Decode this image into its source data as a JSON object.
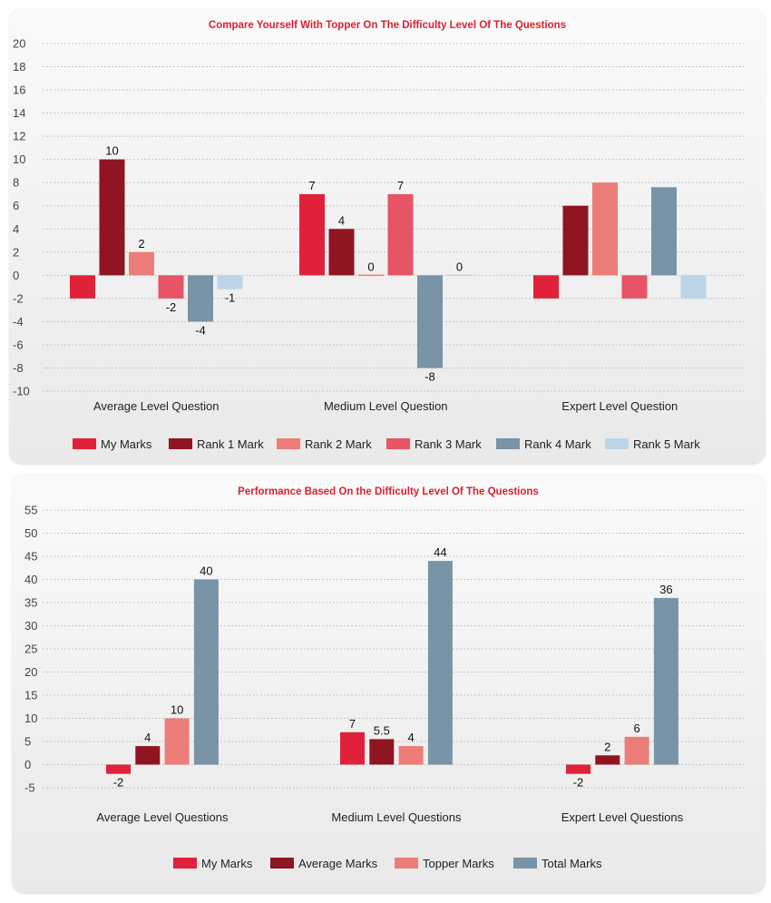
{
  "chart_data": [
    {
      "type": "bar",
      "title": "Compare Yourself With Topper On The Difficulty Level Of The Questions",
      "xlabel": "",
      "ylabel": "",
      "ylim": [
        -10,
        20
      ],
      "yticks": [
        20,
        18,
        16,
        14,
        12,
        10,
        8,
        6,
        4,
        2,
        0,
        -2,
        -4,
        -6,
        -8,
        -10
      ],
      "categories": [
        "Average Level Question",
        "Medium Level Question",
        "Expert Level Question"
      ],
      "series": [
        {
          "name": "My Marks",
          "color": "#e0213a",
          "values": [
            -2,
            7,
            -2
          ],
          "labels": [
            "",
            "7",
            ""
          ]
        },
        {
          "name": "Rank 1 Mark",
          "color": "#8f1522",
          "values": [
            10,
            4,
            6
          ],
          "labels": [
            "10",
            "4",
            ""
          ]
        },
        {
          "name": "Rank 2 Mark",
          "color": "#ec7d78",
          "values": [
            2,
            0,
            8
          ],
          "labels": [
            "2",
            "0",
            ""
          ]
        },
        {
          "name": "Rank 3 Mark",
          "color": "#e65466",
          "values": [
            -2,
            7,
            -2
          ],
          "labels": [
            "-2",
            "7",
            ""
          ]
        },
        {
          "name": "Rank 4 Mark",
          "color": "#7993a7",
          "values": [
            -4,
            -8,
            7.6
          ],
          "labels": [
            "-4",
            "-8",
            ""
          ]
        },
        {
          "name": "Rank 5 Mark",
          "color": "#bcd4e6",
          "values": [
            -1.2,
            0,
            -2
          ],
          "labels": [
            "-1",
            "0",
            ""
          ]
        }
      ],
      "grid": true,
      "legend": "bottom"
    },
    {
      "type": "bar",
      "title": "Performance Based On the Difficulty Level Of The Questions",
      "xlabel": "",
      "ylabel": "",
      "ylim": [
        -5,
        55
      ],
      "yticks": [
        55,
        50,
        45,
        40,
        35,
        30,
        25,
        20,
        15,
        10,
        5,
        0,
        -5
      ],
      "categories": [
        "Average Level Questions",
        "Medium Level Questions",
        "Expert Level Questions"
      ],
      "series": [
        {
          "name": "My Marks",
          "color": "#e0213a",
          "values": [
            -2,
            7,
            -2
          ],
          "labels": [
            "-2",
            "7",
            "-2"
          ]
        },
        {
          "name": "Average Marks",
          "color": "#8f1522",
          "values": [
            4,
            5.5,
            2
          ],
          "labels": [
            "4",
            "5.5",
            "2"
          ]
        },
        {
          "name": "Topper Marks",
          "color": "#ec7d78",
          "values": [
            10,
            4,
            6
          ],
          "labels": [
            "10",
            "4",
            "6"
          ]
        },
        {
          "name": "Total Marks",
          "color": "#7993a7",
          "values": [
            40,
            44,
            36
          ],
          "labels": [
            "40",
            "44",
            "36"
          ]
        }
      ],
      "grid": true,
      "legend": "bottom"
    }
  ]
}
